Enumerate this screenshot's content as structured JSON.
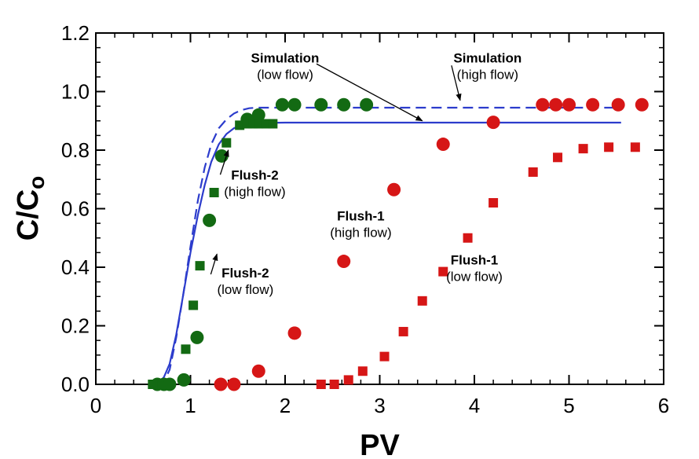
{
  "chart_data": {
    "type": "scatter",
    "xlabel": "PV",
    "ylabel_main": "C/C",
    "ylabel_sub": "o",
    "xlim": [
      0,
      6
    ],
    "ylim": [
      0,
      1.2
    ],
    "xticks": [
      "0",
      "1",
      "2",
      "3",
      "4",
      "5",
      "6"
    ],
    "yticks": [
      "0.0",
      "0.2",
      "0.4",
      "0.6",
      "0.8",
      "1.0",
      "1.2"
    ],
    "grid": false,
    "colors": {
      "green": "#136a13",
      "red": "#d61616",
      "blue": "#2c3ccc"
    },
    "series": [
      {
        "marker": "circle",
        "color": "green",
        "x": [
          0.65,
          0.72,
          0.78,
          0.93,
          1.07,
          1.2,
          1.33,
          1.6,
          1.72,
          1.97,
          2.1,
          2.38,
          2.62,
          2.86
        ],
        "y": [
          0.0,
          0.0,
          0.0,
          0.015,
          0.16,
          0.56,
          0.78,
          0.905,
          0.92,
          0.955,
          0.955,
          0.955,
          0.955,
          0.955
        ]
      },
      {
        "marker": "square",
        "color": "green",
        "x": [
          0.6,
          0.95,
          1.03,
          1.1,
          1.25,
          1.38,
          1.52,
          1.6,
          1.66,
          1.72,
          1.8,
          1.87
        ],
        "y": [
          0.0,
          0.12,
          0.27,
          0.405,
          0.655,
          0.825,
          0.885,
          0.89,
          0.89,
          0.89,
          0.89,
          0.89
        ]
      },
      {
        "marker": "circle",
        "color": "red",
        "x": [
          1.32,
          1.46,
          1.72,
          2.1,
          2.62,
          3.15,
          3.67,
          4.2,
          4.72,
          4.86,
          5.0,
          5.25,
          5.52,
          5.77
        ],
        "y": [
          0.0,
          0.0,
          0.045,
          0.175,
          0.42,
          0.665,
          0.82,
          0.895,
          0.955,
          0.955,
          0.955,
          0.955,
          0.955,
          0.955
        ]
      },
      {
        "marker": "square",
        "color": "red",
        "x": [
          2.38,
          2.52,
          2.67,
          2.82,
          3.05,
          3.25,
          3.45,
          3.67,
          3.93,
          4.2,
          4.62,
          4.88,
          5.15,
          5.42,
          5.7
        ],
        "y": [
          0.0,
          0.0,
          0.015,
          0.045,
          0.095,
          0.18,
          0.285,
          0.385,
          0.5,
          0.62,
          0.725,
          0.775,
          0.805,
          0.81,
          0.81
        ]
      },
      {
        "marker": "line-solid",
        "color": "blue",
        "x": [
          0.65,
          0.72,
          0.78,
          0.85,
          0.92,
          1.0,
          1.08,
          1.15,
          1.22,
          1.3,
          1.38,
          1.46,
          1.54,
          1.62,
          1.7,
          1.8,
          2.0,
          2.5,
          3.0,
          3.5,
          4.0,
          4.5,
          5.0,
          5.55
        ],
        "y": [
          0.0,
          0.025,
          0.07,
          0.17,
          0.3,
          0.45,
          0.58,
          0.68,
          0.76,
          0.82,
          0.855,
          0.875,
          0.885,
          0.89,
          0.892,
          0.893,
          0.894,
          0.894,
          0.894,
          0.894,
          0.894,
          0.894,
          0.894,
          0.894
        ]
      },
      {
        "marker": "line-dashed",
        "color": "blue",
        "x": [
          0.65,
          0.72,
          0.78,
          0.85,
          0.92,
          1.0,
          1.08,
          1.15,
          1.22,
          1.3,
          1.38,
          1.46,
          1.54,
          1.62,
          1.7,
          1.8,
          2.0,
          2.5,
          3.0,
          3.5,
          4.0,
          4.5,
          5.0,
          5.55
        ],
        "y": [
          0.0,
          0.01,
          0.05,
          0.16,
          0.3,
          0.47,
          0.63,
          0.74,
          0.82,
          0.875,
          0.905,
          0.925,
          0.937,
          0.943,
          0.945,
          0.945,
          0.945,
          0.945,
          0.945,
          0.945,
          0.945,
          0.945,
          0.945,
          0.945
        ]
      }
    ],
    "annotations": [
      {
        "id": "sim-low",
        "lines": [
          "Simulation",
          "(low flow)"
        ],
        "label_x": 2.0,
        "label_y": 1.1,
        "arrow_to": [
          3.45,
          0.9
        ]
      },
      {
        "id": "sim-high",
        "lines": [
          "Simulation",
          "(high flow)"
        ],
        "label_x": 4.14,
        "label_y": 1.1,
        "arrow_to": [
          3.85,
          0.97
        ]
      },
      {
        "id": "flush2-hi",
        "lines": [
          "Flush-2",
          "(high flow)"
        ],
        "label_x": 1.68,
        "label_y": 0.7,
        "arrow_to": [
          1.4,
          0.8
        ]
      },
      {
        "id": "flush2-lo",
        "lines": [
          "Flush-2",
          "(low flow)"
        ],
        "label_x": 1.58,
        "label_y": 0.365,
        "arrow_to": [
          1.28,
          0.445
        ]
      },
      {
        "id": "flush1-hi",
        "lines": [
          "Flush-1",
          "(high flow)"
        ],
        "label_x": 2.8,
        "label_y": 0.56,
        "arrow_to": null
      },
      {
        "id": "flush1-lo",
        "lines": [
          "Flush-1",
          "(low flow)"
        ],
        "label_x": 4.0,
        "label_y": 0.41,
        "arrow_to": null
      }
    ]
  }
}
